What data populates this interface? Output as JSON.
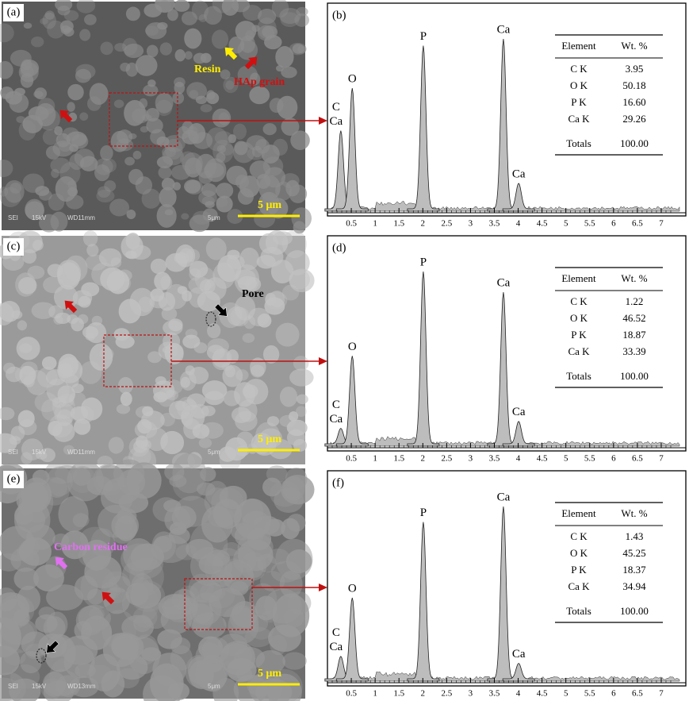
{
  "panels": [
    {
      "label": "(a)",
      "annotations": [
        "Resin",
        "HAp grain"
      ],
      "scale_bar": "5 μm",
      "footer": [
        "SEI",
        "15kV",
        "WD11mm",
        "5μm"
      ]
    },
    {
      "label": "(c)",
      "annotations": [
        "Pore"
      ],
      "scale_bar": "5 μm",
      "footer": [
        "SEI",
        "15kV",
        "WD11mm",
        "5μm"
      ]
    },
    {
      "label": "(e)",
      "annotations": [
        "Carbon residue"
      ],
      "scale_bar": "5 μm",
      "footer": [
        "SEI",
        "15kV",
        "WD13mm",
        "5μm"
      ]
    }
  ],
  "spectra": [
    {
      "label": "(b)",
      "xlim": [
        0,
        7.25
      ],
      "xticks": [
        0.5,
        1,
        1.5,
        2,
        2.5,
        3,
        3.5,
        4,
        4.5,
        5,
        5.5,
        6,
        6.5,
        7
      ],
      "peaks": [
        {
          "x": 0.28,
          "height": 46,
          "labels": [
            "C",
            "Ca"
          ]
        },
        {
          "x": 0.52,
          "height": 71,
          "labels": [
            "O"
          ]
        },
        {
          "x": 2.01,
          "height": 96,
          "labels": [
            "P"
          ]
        },
        {
          "x": 3.69,
          "height": 100,
          "labels": [
            "Ca"
          ]
        },
        {
          "x": 4.01,
          "height": 15,
          "labels": [
            "Ca"
          ]
        }
      ],
      "table": {
        "header": [
          "Element",
          "Wt. %"
        ],
        "rows": [
          [
            "C K",
            "3.95"
          ],
          [
            "O K",
            "50.18"
          ],
          [
            "P K",
            "16.60"
          ],
          [
            "Ca K",
            "29.26"
          ]
        ],
        "totals": [
          "Totals",
          "100.00"
        ]
      }
    },
    {
      "label": "(d)",
      "xlim": [
        0,
        7.25
      ],
      "xticks": [
        0.5,
        1,
        1.5,
        2,
        2.5,
        3,
        3.5,
        4,
        4.5,
        5,
        5.5,
        6,
        6.5,
        7
      ],
      "peaks": [
        {
          "x": 0.28,
          "height": 9,
          "labels": [
            "C",
            "Ca"
          ]
        },
        {
          "x": 0.52,
          "height": 51,
          "labels": [
            "O"
          ]
        },
        {
          "x": 2.01,
          "height": 100,
          "labels": [
            "P"
          ]
        },
        {
          "x": 3.69,
          "height": 88,
          "labels": [
            "Ca"
          ]
        },
        {
          "x": 4.01,
          "height": 13,
          "labels": [
            "Ca"
          ]
        }
      ],
      "table": {
        "header": [
          "Element",
          "Wt. %"
        ],
        "rows": [
          [
            "C K",
            "1.22"
          ],
          [
            "O K",
            "46.52"
          ],
          [
            "P K",
            "18.87"
          ],
          [
            "Ca K",
            "33.39"
          ]
        ],
        "totals": [
          "Totals",
          "100.00"
        ]
      }
    },
    {
      "label": "(f)",
      "xlim": [
        0,
        7.25
      ],
      "xticks": [
        0.5,
        1,
        1.5,
        2,
        2.5,
        3,
        3.5,
        4,
        4.5,
        5,
        5.5,
        6,
        6.5,
        7
      ],
      "peaks": [
        {
          "x": 0.28,
          "height": 13,
          "labels": [
            "C",
            "Ca"
          ]
        },
        {
          "x": 0.52,
          "height": 47,
          "labels": [
            "O"
          ]
        },
        {
          "x": 2.01,
          "height": 91,
          "labels": [
            "P"
          ]
        },
        {
          "x": 3.69,
          "height": 100,
          "labels": [
            "Ca"
          ]
        },
        {
          "x": 4.01,
          "height": 9,
          "labels": [
            "Ca"
          ]
        }
      ],
      "table": {
        "header": [
          "Element",
          "Wt. %"
        ],
        "rows": [
          [
            "C K",
            "1.43"
          ],
          [
            "O K",
            "45.25"
          ],
          [
            "P K",
            "18.37"
          ],
          [
            "Ca K",
            "34.94"
          ]
        ],
        "totals": [
          "Totals",
          "100.00"
        ]
      }
    }
  ]
}
